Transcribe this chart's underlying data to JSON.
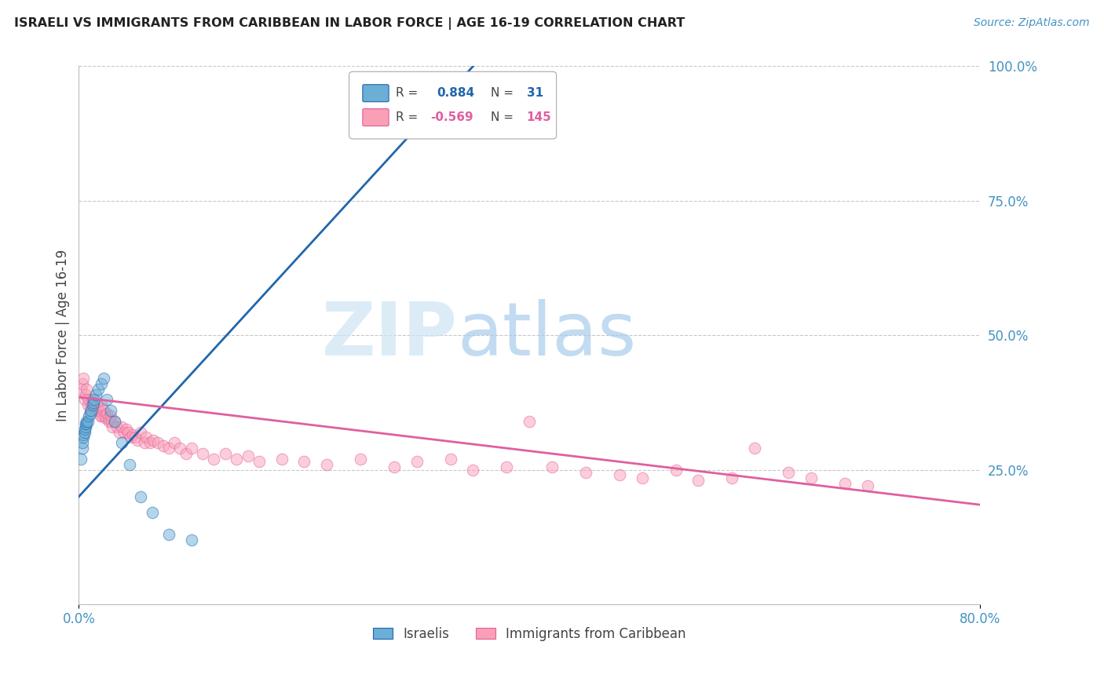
{
  "title": "ISRAELI VS IMMIGRANTS FROM CARIBBEAN IN LABOR FORCE | AGE 16-19 CORRELATION CHART",
  "source": "Source: ZipAtlas.com",
  "ylabel": "In Labor Force | Age 16-19",
  "y_tick_labels_right": [
    "100.0%",
    "75.0%",
    "50.0%",
    "25.0%"
  ],
  "blue_color": "#6baed6",
  "pink_color": "#fa9fb5",
  "blue_line_color": "#2166ac",
  "pink_line_color": "#e05fa0",
  "background_color": "#ffffff",
  "grid_color": "#c8c8c8",
  "title_color": "#222222",
  "right_axis_color": "#4393c3",
  "israelis_x": [
    0.002,
    0.003,
    0.003,
    0.004,
    0.004,
    0.005,
    0.005,
    0.006,
    0.006,
    0.007,
    0.007,
    0.008,
    0.009,
    0.01,
    0.011,
    0.012,
    0.013,
    0.014,
    0.015,
    0.017,
    0.02,
    0.022,
    0.025,
    0.028,
    0.032,
    0.038,
    0.045,
    0.055,
    0.065,
    0.08,
    0.1
  ],
  "israelis_y": [
    0.27,
    0.29,
    0.3,
    0.31,
    0.315,
    0.32,
    0.325,
    0.33,
    0.335,
    0.335,
    0.34,
    0.34,
    0.35,
    0.355,
    0.36,
    0.37,
    0.375,
    0.38,
    0.39,
    0.4,
    0.41,
    0.42,
    0.38,
    0.36,
    0.34,
    0.3,
    0.26,
    0.2,
    0.17,
    0.13,
    0.12
  ],
  "caribbean_x": [
    0.002,
    0.003,
    0.004,
    0.005,
    0.006,
    0.007,
    0.008,
    0.009,
    0.01,
    0.011,
    0.012,
    0.013,
    0.015,
    0.016,
    0.017,
    0.018,
    0.019,
    0.02,
    0.021,
    0.022,
    0.023,
    0.024,
    0.025,
    0.026,
    0.027,
    0.028,
    0.029,
    0.03,
    0.032,
    0.034,
    0.036,
    0.038,
    0.04,
    0.042,
    0.044,
    0.046,
    0.048,
    0.05,
    0.052,
    0.055,
    0.058,
    0.06,
    0.063,
    0.066,
    0.07,
    0.075,
    0.08,
    0.085,
    0.09,
    0.095,
    0.1,
    0.11,
    0.12,
    0.13,
    0.14,
    0.15,
    0.16,
    0.18,
    0.2,
    0.22,
    0.25,
    0.28,
    0.3,
    0.33,
    0.35,
    0.38,
    0.4,
    0.42,
    0.45,
    0.48,
    0.5,
    0.53,
    0.55,
    0.58,
    0.6,
    0.63,
    0.65,
    0.68,
    0.7
  ],
  "caribbean_y": [
    0.4,
    0.41,
    0.42,
    0.38,
    0.39,
    0.4,
    0.37,
    0.38,
    0.36,
    0.37,
    0.38,
    0.37,
    0.36,
    0.37,
    0.365,
    0.36,
    0.35,
    0.37,
    0.35,
    0.36,
    0.35,
    0.345,
    0.355,
    0.345,
    0.34,
    0.35,
    0.34,
    0.33,
    0.34,
    0.33,
    0.32,
    0.33,
    0.32,
    0.325,
    0.32,
    0.31,
    0.315,
    0.31,
    0.305,
    0.32,
    0.3,
    0.31,
    0.3,
    0.305,
    0.3,
    0.295,
    0.29,
    0.3,
    0.29,
    0.28,
    0.29,
    0.28,
    0.27,
    0.28,
    0.27,
    0.275,
    0.265,
    0.27,
    0.265,
    0.26,
    0.27,
    0.255,
    0.265,
    0.27,
    0.25,
    0.255,
    0.34,
    0.255,
    0.245,
    0.24,
    0.235,
    0.25,
    0.23,
    0.235,
    0.29,
    0.245,
    0.235,
    0.225,
    0.22
  ],
  "xlim": [
    0.0,
    0.8
  ],
  "ylim": [
    0.0,
    1.0
  ],
  "blue_trend_x": [
    0.0,
    0.35
  ],
  "blue_trend_y": [
    0.2,
    1.0
  ],
  "pink_trend_x": [
    0.0,
    0.8
  ],
  "pink_trend_y": [
    0.385,
    0.185
  ],
  "watermark_ZIP_color": "#d0e8f8",
  "watermark_atlas_color": "#b0d4ee"
}
